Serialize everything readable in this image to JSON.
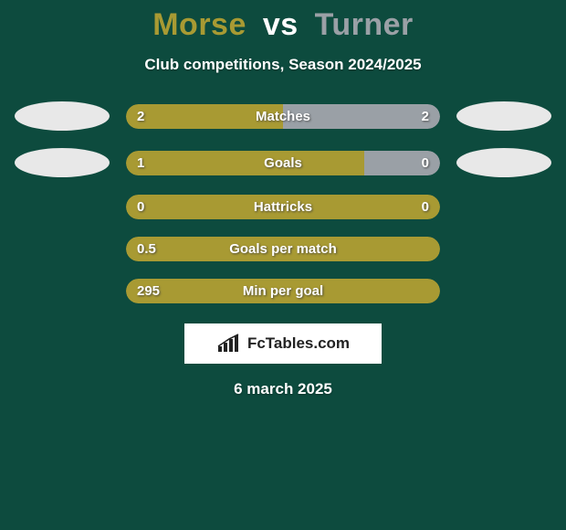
{
  "background_color": "#0d4b3e",
  "title": {
    "player1": "Morse",
    "vs": "vs",
    "player2": "Turner",
    "player1_color": "#a89a33",
    "vs_color": "#ffffff",
    "player2_color": "#9aa0a6"
  },
  "subtitle": "Club competitions, Season 2024/2025",
  "subtitle_color": "#ffffff",
  "bar_track_color": "#114f42",
  "stats": [
    {
      "label": "Matches",
      "left_value": "2",
      "right_value": "2",
      "left_ratio": 0.5,
      "right_ratio": 0.5,
      "left_color": "#a89a33",
      "right_color": "#9aa0a6",
      "show_left_disc": true,
      "show_right_disc": true,
      "left_disc_color": "#e8e8e8",
      "right_disc_color": "#e8e8e8"
    },
    {
      "label": "Goals",
      "left_value": "1",
      "right_value": "0",
      "left_ratio": 0.76,
      "right_ratio": 0.24,
      "left_color": "#a89a33",
      "right_color": "#9aa0a6",
      "show_left_disc": true,
      "show_right_disc": true,
      "left_disc_color": "#e8e8e8",
      "right_disc_color": "#e8e8e8"
    },
    {
      "label": "Hattricks",
      "left_value": "0",
      "right_value": "0",
      "left_ratio": 1.0,
      "right_ratio": 0.0,
      "left_color": "#a89a33",
      "right_color": "#9aa0a6",
      "show_left_disc": false,
      "show_right_disc": false
    },
    {
      "label": "Goals per match",
      "left_value": "0.5",
      "right_value": "",
      "left_ratio": 1.0,
      "right_ratio": 0.0,
      "left_color": "#a89a33",
      "right_color": "#9aa0a6",
      "show_left_disc": false,
      "show_right_disc": false
    },
    {
      "label": "Min per goal",
      "left_value": "295",
      "right_value": "",
      "left_ratio": 1.0,
      "right_ratio": 0.0,
      "left_color": "#a89a33",
      "right_color": "#9aa0a6",
      "show_left_disc": false,
      "show_right_disc": false
    }
  ],
  "branding": {
    "background_color": "#ffffff",
    "text": "FcTables.com",
    "text_color": "#222222",
    "icon_color": "#222222"
  },
  "footer_date": "6 march 2025",
  "footer_date_color": "#ffffff"
}
